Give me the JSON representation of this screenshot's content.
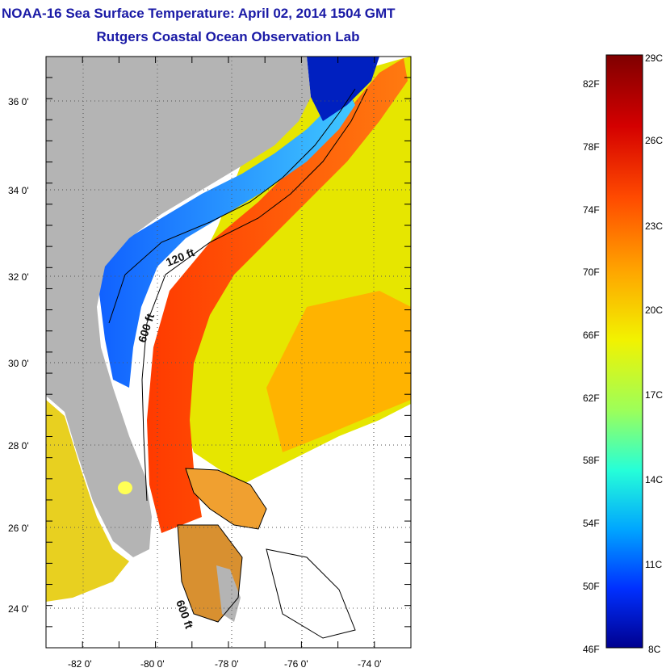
{
  "header": {
    "title": "NOAA-16 Sea Surface Temperature:  April 02, 2014 1504 GMT",
    "subtitle": "Rutgers Coastal Ocean Observation Lab"
  },
  "map": {
    "lon_range": [
      -83,
      -73
    ],
    "lat_range": [
      23,
      37
    ],
    "x_ticks": [
      "-82 0'",
      "-80 0'",
      "-78 0'",
      "-76 0'",
      "-74 0'"
    ],
    "y_ticks": [
      "36 0'",
      "34 0'",
      "32 0'",
      "30 0'",
      "28 0'",
      "26 0'",
      "24 0'"
    ],
    "contours": {
      "c120": "120 ft",
      "c600a": "600 ft",
      "c600b": "600 ft"
    },
    "colors": {
      "land": "#b4b4b4",
      "frame": "#000000",
      "grid": "#555555"
    }
  },
  "colorbar": {
    "f_labels": [
      "82F",
      "78F",
      "74F",
      "70F",
      "66F",
      "62F",
      "58F",
      "54F",
      "50F",
      "46F"
    ],
    "c_labels": [
      "29C",
      "26C",
      "23C",
      "20C",
      "17C",
      "14C",
      "11C",
      "8C"
    ],
    "colors": [
      "#7f0000",
      "#d40000",
      "#ff4a00",
      "#ffa200",
      "#f2f200",
      "#9cff5a",
      "#26ffd8",
      "#00a6ff",
      "#0030ff",
      "#00008f"
    ]
  }
}
